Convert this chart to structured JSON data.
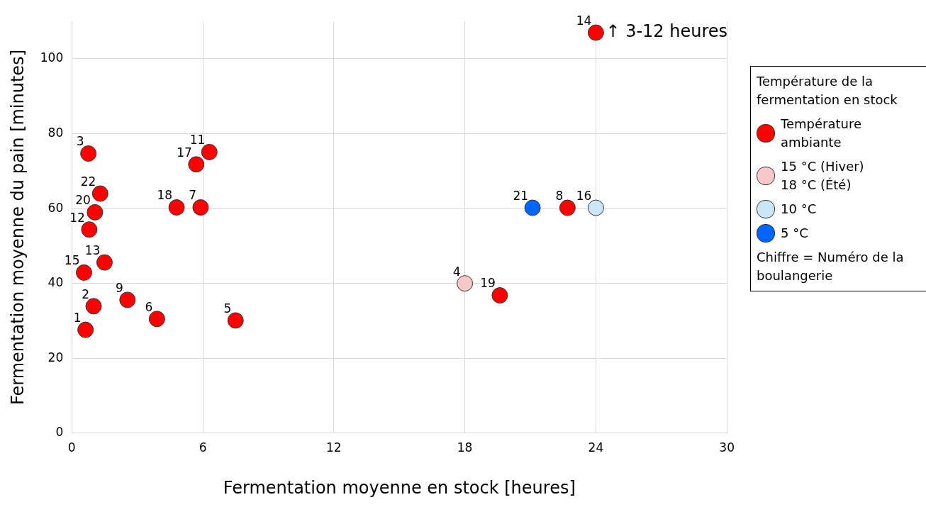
{
  "chart_data": {
    "type": "scatter",
    "xlabel": "Fermentation moyenne en stock [heures]",
    "ylabel": "Fermentation moyenne du pain [minutes]",
    "legend_title": "Température de la fermentation en stock",
    "legend": "right",
    "marker": "circle",
    "grid": true,
    "xlim": [
      0,
      30
    ],
    "xticks": [
      0,
      6,
      12,
      18,
      24,
      30
    ],
    "ylim": [
      0,
      110
    ],
    "yticks": [
      0,
      20,
      40,
      60,
      80,
      100
    ],
    "series": [
      {
        "name": "Température ambiante",
        "color": "#ff0000",
        "x": [
          0.63,
          1.0,
          0.76,
          7.5,
          3.9,
          5.9,
          22.7,
          2.55,
          6.3,
          0.8,
          1.5,
          24.0,
          0.56,
          5.7,
          4.8,
          19.6,
          1.06,
          1.3
        ],
        "values": [
          27.6,
          33.9,
          74.7,
          30.1,
          30.5,
          60.3,
          60.2,
          35.6,
          75.1,
          54.4,
          45.6,
          107,
          42.9,
          71.8,
          60.3,
          36.8,
          59.0,
          64.0
        ]
      },
      {
        "name": "15 °C (Hiver)\n18 °C  (Été)",
        "color": "#f8c8c8",
        "x": [
          18.0
        ],
        "values": [
          40.0
        ]
      },
      {
        "name": "10 °C",
        "color": "#cce6f8",
        "x": [
          24.0
        ],
        "values": [
          60.2
        ]
      },
      {
        "name": "5 °C",
        "color": "#0066ff",
        "x": [
          21.1
        ],
        "values": [
          60.2
        ]
      }
    ],
    "annotations": [
      {
        "text": "1",
        "x": 0.63,
        "y": 27.6
      },
      {
        "text": "2",
        "x": 1.0,
        "y": 33.9
      },
      {
        "text": "3",
        "x": 0.76,
        "y": 74.7
      },
      {
        "text": "4",
        "x": 18.0,
        "y": 40.0
      },
      {
        "text": "5",
        "x": 7.5,
        "y": 30.1
      },
      {
        "text": "6",
        "x": 3.9,
        "y": 30.5
      },
      {
        "text": "7",
        "x": 5.9,
        "y": 60.3
      },
      {
        "text": "8",
        "x": 22.7,
        "y": 60.2
      },
      {
        "text": "9",
        "x": 2.55,
        "y": 35.6
      },
      {
        "text": "11",
        "x": 6.3,
        "y": 75.1
      },
      {
        "text": "12",
        "x": 0.8,
        "y": 54.4
      },
      {
        "text": "13",
        "x": 1.5,
        "y": 45.6
      },
      {
        "text": "14",
        "x": 24.0,
        "y": 107
      },
      {
        "text": "15",
        "x": 0.56,
        "y": 42.9
      },
      {
        "text": "16",
        "x": 24.0,
        "y": 60.2
      },
      {
        "text": "17",
        "x": 5.7,
        "y": 71.8
      },
      {
        "text": "18",
        "x": 4.8,
        "y": 60.3
      },
      {
        "text": "19",
        "x": 19.6,
        "y": 36.8
      },
      {
        "text": "20",
        "x": 1.06,
        "y": 59.0
      },
      {
        "text": "21",
        "x": 21.1,
        "y": 60.2
      },
      {
        "text": "22",
        "x": 1.3,
        "y": 64.0
      },
      {
        "text": "↑ 3-12 heures",
        "x": 24.0,
        "y": 107
      },
      "Chiffre = Numéro de la boulangerie"
    ]
  }
}
